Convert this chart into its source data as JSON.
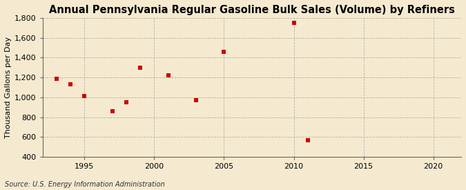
{
  "title": "Annual Pennsylvania Regular Gasoline Bulk Sales (Volume) by Refiners",
  "ylabel": "Thousand Gallons per Day",
  "source": "Source: U.S. Energy Information Administration",
  "x": [
    1993,
    1994,
    1995,
    1997,
    1998,
    1999,
    2001,
    2003,
    2005,
    2010,
    2011
  ],
  "y": [
    1190,
    1130,
    1010,
    860,
    950,
    1300,
    1220,
    970,
    1460,
    1750,
    570
  ],
  "marker_color": "#cc0000",
  "marker": "s",
  "marker_size": 5,
  "xlim": [
    1992,
    2022
  ],
  "ylim": [
    400,
    1800
  ],
  "yticks": [
    400,
    600,
    800,
    1000,
    1200,
    1400,
    1600,
    1800
  ],
  "xticks": [
    1995,
    2000,
    2005,
    2010,
    2015,
    2020
  ],
  "background_color": "#f5ead0",
  "plot_bg_color": "#f5ead0",
  "grid_color": "#999999",
  "title_fontsize": 10.5,
  "label_fontsize": 8,
  "tick_fontsize": 8,
  "source_fontsize": 7
}
